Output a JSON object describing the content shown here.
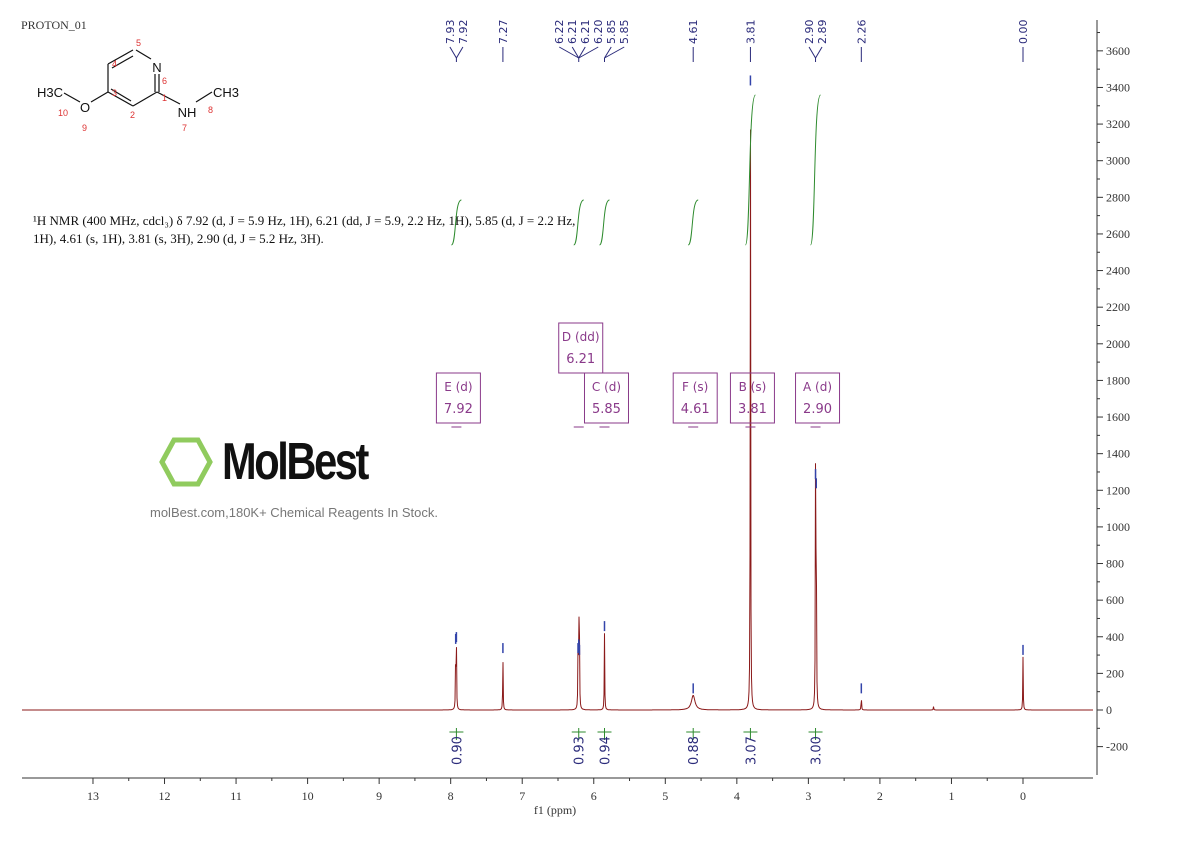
{
  "title": "PROTON_01",
  "description": "¹H NMR (400 MHz, cdcl₃) δ 7.92 (d, J = 5.9 Hz, 1H), 6.21 (dd, J = 5.9, 2.2 Hz, 1H), 5.85 (d, J = 2.2 Hz, 1H), 4.61 (s, 1H), 3.81 (s, 3H), 2.90 (d, J = 5.2 Hz, 3H).",
  "structure": {
    "atoms": [
      "N",
      "NH",
      "CH3",
      "H3C",
      "O"
    ],
    "numbers": [
      "1",
      "2",
      "3",
      "4",
      "5",
      "6",
      "7",
      "8",
      "9",
      "10"
    ]
  },
  "watermark": {
    "logo": "MolBest",
    "text": "molBest.com,180K+ Chemical Reagents In Stock."
  },
  "colors": {
    "spectrum": "#8b1a1a",
    "peak_labels": "#2a2a7a",
    "integral": "#2e8b2e",
    "multiplet": "#8a3a8a"
  },
  "chart_data": {
    "type": "line",
    "title": "",
    "xlabel": "f1 (ppm)",
    "ylabel": "",
    "xlim": [
      14,
      -1
    ],
    "ylim": [
      -350,
      3800
    ],
    "x_ticks": [
      13,
      12,
      11,
      10,
      9,
      8,
      7,
      6,
      5,
      4,
      3,
      2,
      1,
      0
    ],
    "y_ticks": [
      -200,
      0,
      200,
      400,
      600,
      800,
      1000,
      1200,
      1400,
      1600,
      1800,
      2000,
      2200,
      2400,
      2600,
      2800,
      3000,
      3200,
      3400,
      3600
    ],
    "peaks": [
      {
        "ppm": 7.93,
        "height": 350
      },
      {
        "ppm": 7.92,
        "height": 360
      },
      {
        "ppm": 7.27,
        "height": 300
      },
      {
        "ppm": 6.22,
        "height": 300
      },
      {
        "ppm": 6.21,
        "height": 320
      },
      {
        "ppm": 6.205,
        "height": 310
      },
      {
        "ppm": 6.2,
        "height": 290
      },
      {
        "ppm": 5.85,
        "height": 420
      },
      {
        "ppm": 4.61,
        "height": 80,
        "broad": true
      },
      {
        "ppm": 3.81,
        "height": 3400
      },
      {
        "ppm": 2.9,
        "height": 1250
      },
      {
        "ppm": 2.89,
        "height": 1200
      },
      {
        "ppm": 2.26,
        "height": 80
      },
      {
        "ppm": 1.25,
        "height": 20
      },
      {
        "ppm": 0.0,
        "height": 290
      }
    ],
    "peak_labels": [
      {
        "group": [
          "7.93",
          "7.92"
        ],
        "ppm": 7.92
      },
      {
        "group": [
          "7.27"
        ],
        "ppm": 7.27
      },
      {
        "group": [
          "6.22",
          "6.21",
          "6.21",
          "6.20"
        ],
        "ppm": 6.21
      },
      {
        "group": [
          "5.85",
          "5.85"
        ],
        "ppm": 5.85
      },
      {
        "group": [
          "4.61"
        ],
        "ppm": 4.61
      },
      {
        "group": [
          "3.81"
        ],
        "ppm": 3.81
      },
      {
        "group": [
          "2.90",
          "2.89"
        ],
        "ppm": 2.9
      },
      {
        "group": [
          "2.26"
        ],
        "ppm": 2.26
      },
      {
        "group": [
          "0.00"
        ],
        "ppm": 0.0
      }
    ],
    "multiplets": [
      {
        "label": "E (d)",
        "ppm": 7.92
      },
      {
        "label": "D (dd)",
        "ppm": 6.21
      },
      {
        "label": "C (d)",
        "ppm": 5.85
      },
      {
        "label": "F (s)",
        "ppm": 4.61
      },
      {
        "label": "B (s)",
        "ppm": 3.81
      },
      {
        "label": "A (d)",
        "ppm": 2.9
      }
    ],
    "integrals": [
      {
        "ppm": 7.92,
        "value": "0.90"
      },
      {
        "ppm": 6.21,
        "value": "0.93"
      },
      {
        "ppm": 5.85,
        "value": "0.94"
      },
      {
        "ppm": 4.61,
        "value": "0.88"
      },
      {
        "ppm": 3.81,
        "value": "3.07"
      },
      {
        "ppm": 2.9,
        "value": "3.00"
      }
    ]
  }
}
